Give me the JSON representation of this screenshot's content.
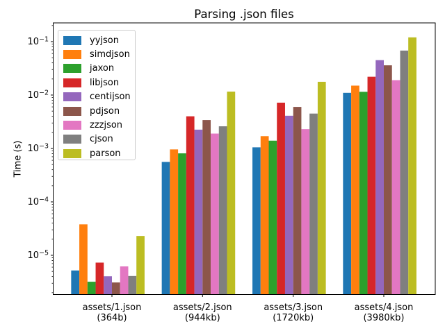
{
  "chart_data": {
    "type": "bar",
    "title": "Parsing .json files",
    "ylabel": "Time (s)",
    "xlabel": "",
    "yscale": "log",
    "ylim": [
      1.85e-06,
      0.224
    ],
    "ytick_exponents": [
      -1,
      -2,
      -3,
      -4,
      -5
    ],
    "grid": false,
    "legend_position": "upper left",
    "categories": [
      {
        "label": "assets/1.json",
        "sublabel": "(364b)"
      },
      {
        "label": "assets/2.json",
        "sublabel": "(944kb)"
      },
      {
        "label": "assets/3.json",
        "sublabel": "(1720kb)"
      },
      {
        "label": "assets/4.json",
        "sublabel": "(3980kb)"
      }
    ],
    "series": [
      {
        "name": "yyjson",
        "color": "#1f77b4",
        "values": [
          5.2e-06,
          0.00056,
          0.00105,
          0.011
        ]
      },
      {
        "name": "simdjson",
        "color": "#ff7f0e",
        "values": [
          3.8e-05,
          0.00096,
          0.0017,
          0.015
        ]
      },
      {
        "name": "jaxon",
        "color": "#2ca02c",
        "values": [
          3.2e-06,
          0.00081,
          0.0014,
          0.0115
        ]
      },
      {
        "name": "libjson",
        "color": "#d62728",
        "values": [
          7.3e-06,
          0.004,
          0.0072,
          0.022
        ]
      },
      {
        "name": "centijson",
        "color": "#9467bd",
        "values": [
          4.05e-06,
          0.00225,
          0.0041,
          0.045
        ]
      },
      {
        "name": "pdjson",
        "color": "#8c564b",
        "values": [
          3.1e-06,
          0.0034,
          0.006,
          0.036
        ]
      },
      {
        "name": "zzzjson",
        "color": "#e377c2",
        "values": [
          6.2e-06,
          0.0019,
          0.0023,
          0.019
        ]
      },
      {
        "name": "cjson",
        "color": "#7f7f7f",
        "values": [
          4.1e-06,
          0.0026,
          0.0045,
          0.068
        ]
      },
      {
        "name": "parson",
        "color": "#bcbd22",
        "values": [
          2.3e-05,
          0.0116,
          0.0177,
          0.12
        ]
      }
    ]
  }
}
